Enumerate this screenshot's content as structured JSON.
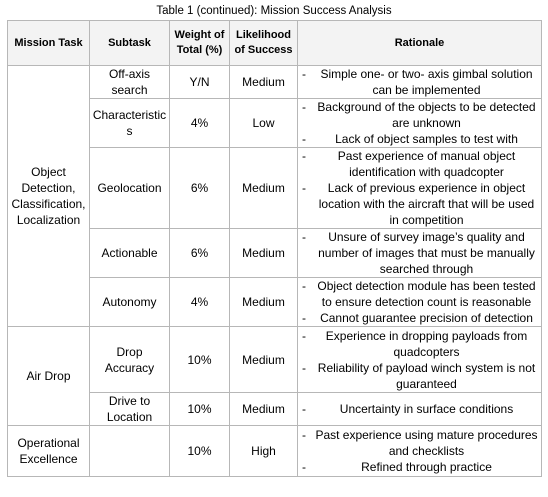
{
  "caption": "Table 1 (continued): Mission Success Analysis",
  "headers": {
    "mission_task": "Mission Task",
    "subtask": "Subtask",
    "weight": "Weight of Total (%)",
    "likelihood": "Likelihood of Success",
    "rationale": "Rationale"
  },
  "groups": [
    {
      "mission_task": "Object Detection, Classification, Localization",
      "rows": [
        {
          "subtask": "Off-axis search",
          "weight": "Y/N",
          "likelihood": "Medium",
          "rationale": [
            "Simple one- or two- axis gimbal solution can be implemented"
          ]
        },
        {
          "subtask": "Characteristics",
          "weight": "4%",
          "likelihood": "Low",
          "rationale": [
            "Background of the objects to be detected are unknown",
            "Lack of object samples to test with"
          ]
        },
        {
          "subtask": "Geolocation",
          "weight": "6%",
          "likelihood": "Medium",
          "rationale": [
            "Past experience of manual object identification with quadcopter",
            "Lack of previous experience in object location with the aircraft that will be used in competition"
          ]
        },
        {
          "subtask": "Actionable",
          "weight": "6%",
          "likelihood": "Medium",
          "rationale": [
            "Unsure of survey image’s quality and number of images that must be manually searched through"
          ]
        },
        {
          "subtask": "Autonomy",
          "weight": "4%",
          "likelihood": "Medium",
          "rationale": [
            "Object detection module has been tested to ensure detection count is reasonable",
            "Cannot guarantee precision of detection"
          ]
        }
      ]
    },
    {
      "mission_task": "Air Drop",
      "rows": [
        {
          "subtask": "Drop Accuracy",
          "weight": "10%",
          "likelihood": "Medium",
          "rationale": [
            "Experience in dropping payloads from quadcopters",
            "Reliability of payload winch system is not guaranteed"
          ]
        },
        {
          "subtask": "Drive to Location",
          "weight": "10%",
          "likelihood": "Medium",
          "rationale": [
            "Uncertainty in surface conditions"
          ]
        }
      ]
    },
    {
      "mission_task": "Operational Excellence",
      "rows": [
        {
          "subtask": "",
          "weight": "10%",
          "likelihood": "High",
          "rationale": [
            "Past experience using mature procedures and checklists",
            "Refined through practice"
          ]
        }
      ]
    }
  ]
}
